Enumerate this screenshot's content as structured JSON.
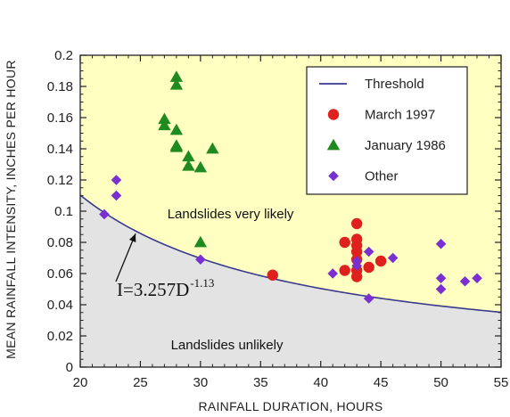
{
  "chart_data": {
    "type": "scatter",
    "xlabel": "RAINFALL DURATION, HOURS",
    "ylabel": "MEAN RAINFALL INTENSITY, INCHES PER HOUR",
    "xlim": [
      20,
      55
    ],
    "ylim": [
      0,
      0.2
    ],
    "x_ticks": [
      "20",
      "25",
      "30",
      "35",
      "40",
      "45",
      "50",
      "55"
    ],
    "y_ticks": [
      "0",
      "0.02",
      "0.04",
      "0.06",
      "0.08",
      "0.1",
      "0.12",
      "0.14",
      "0.16",
      "0.18",
      "0.2"
    ],
    "grid": false,
    "legend_position": "top-right",
    "threshold": {
      "name": "Threshold",
      "coefficient": 3.257,
      "exponent": -1.13,
      "color": "#3a3a8c",
      "equation_base": "I=3.257D",
      "equation_exponent": "-1.13"
    },
    "regions": {
      "above_label": "Landslides very likely",
      "below_label": "Landslides unlikely",
      "above_color": "#ffffc2",
      "below_color": "#e3e3e3"
    },
    "series": [
      {
        "name": "March 1997",
        "marker": "circle",
        "color": "#e0201c",
        "points": [
          [
            36,
            0.059
          ],
          [
            42,
            0.08
          ],
          [
            42,
            0.062
          ],
          [
            43,
            0.092
          ],
          [
            43,
            0.082
          ],
          [
            43,
            0.078
          ],
          [
            43,
            0.074
          ],
          [
            43,
            0.069
          ],
          [
            43,
            0.062
          ],
          [
            43,
            0.058
          ],
          [
            44,
            0.064
          ],
          [
            45,
            0.068
          ]
        ]
      },
      {
        "name": "January 1986",
        "marker": "triangle",
        "color": "#1f8a1f",
        "points": [
          [
            28,
            0.186
          ],
          [
            28,
            0.181
          ],
          [
            27,
            0.159
          ],
          [
            27,
            0.155
          ],
          [
            28,
            0.152
          ],
          [
            28,
            0.141
          ],
          [
            28,
            0.142
          ],
          [
            29,
            0.135
          ],
          [
            29,
            0.129
          ],
          [
            30,
            0.128
          ],
          [
            31,
            0.14
          ],
          [
            30,
            0.08
          ]
        ]
      },
      {
        "name": "Other",
        "marker": "diamond",
        "color": "#7a2fd0",
        "points": [
          [
            23,
            0.12
          ],
          [
            23,
            0.11
          ],
          [
            22,
            0.098
          ],
          [
            30,
            0.069
          ],
          [
            41,
            0.06
          ],
          [
            43,
            0.068
          ],
          [
            43,
            0.065
          ],
          [
            44,
            0.074
          ],
          [
            44,
            0.044
          ],
          [
            46,
            0.07
          ],
          [
            50,
            0.079
          ],
          [
            50,
            0.057
          ],
          [
            50,
            0.05
          ],
          [
            52,
            0.055
          ],
          [
            53,
            0.057
          ]
        ]
      }
    ]
  }
}
